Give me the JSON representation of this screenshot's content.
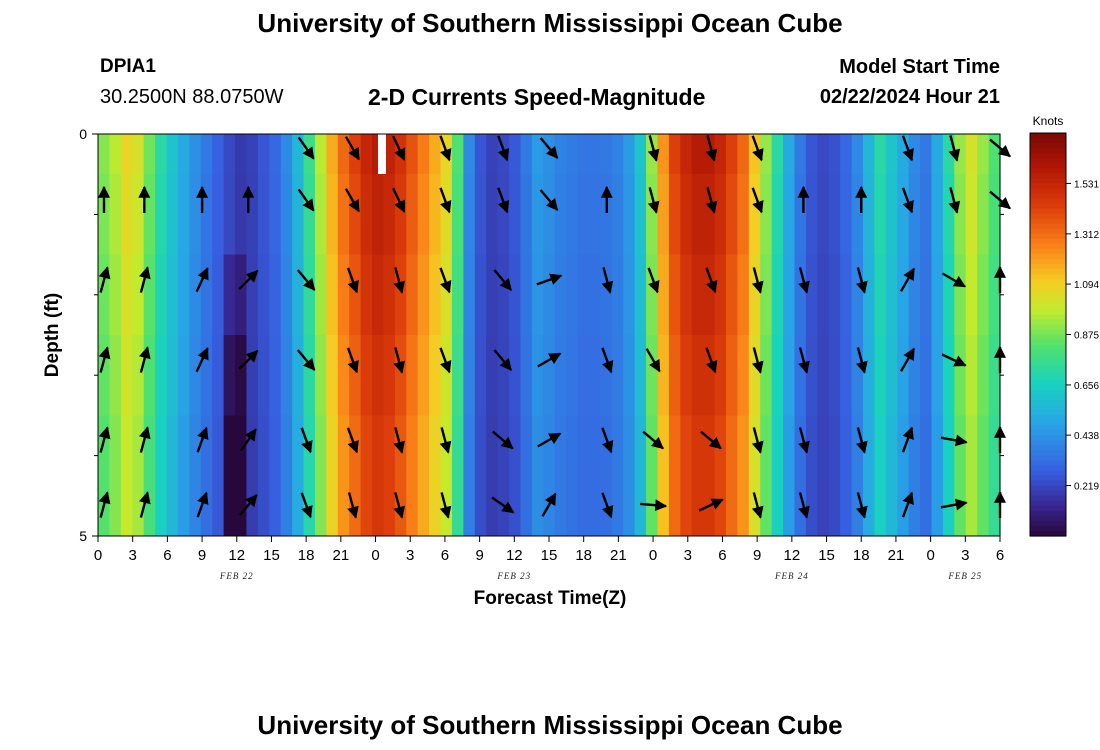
{
  "header": {
    "title": "University of Southern Mississippi Ocean Cube",
    "station_id": "DPIA1",
    "station_coords": "30.2500N  88.0750W",
    "subtitle": "2-D Currents Speed-Magnitude",
    "model_start_label": "Model Start Time",
    "model_start_value": "02/22/2024 Hour 21"
  },
  "footer": {
    "title": "University of Southern Mississippi Ocean Cube"
  },
  "chart_data": {
    "type": "heatmap",
    "title": "2-D Currents Speed-Magnitude",
    "xlabel": "Forecast Time(Z)",
    "ylabel": "Depth (ft)",
    "x_ticks": [
      "0",
      "3",
      "6",
      "9",
      "12",
      "15",
      "18",
      "21",
      "0",
      "3",
      "6",
      "9",
      "12",
      "15",
      "18",
      "21",
      "0",
      "3",
      "6",
      "9",
      "12",
      "15",
      "18",
      "21",
      "0",
      "3",
      "6"
    ],
    "y_ticks": [
      "0",
      "5"
    ],
    "date_labels": [
      {
        "label": "FEB 22",
        "tick_index": 4
      },
      {
        "label": "FEB 23",
        "tick_index": 12
      },
      {
        "label": "FEB 24",
        "tick_index": 20
      },
      {
        "label": "FEB 25",
        "tick_index": 25
      }
    ],
    "hours_start": 0,
    "hours_end": 78,
    "depth_levels": 5,
    "model_start_hour": 24,
    "colorbar": {
      "unit": "Knots",
      "min": 0,
      "max": 1.75,
      "ticks": [
        "1.531",
        "1.312",
        "1.094",
        "0.875",
        "0.656",
        "0.438",
        "0.219"
      ],
      "tick_values": [
        1.531,
        1.312,
        1.094,
        0.875,
        0.656,
        0.438,
        0.219
      ]
    },
    "speed_profile_hourly": [
      0.88,
      0.95,
      1.05,
      1.0,
      0.85,
      0.7,
      0.6,
      0.5,
      0.42,
      0.35,
      0.28,
      0.22,
      0.18,
      0.2,
      0.25,
      0.3,
      0.4,
      0.55,
      0.75,
      0.95,
      1.15,
      1.3,
      1.4,
      1.5,
      1.55,
      1.52,
      1.45,
      1.35,
      1.25,
      1.15,
      1.05,
      0.8,
      0.4,
      0.25,
      0.2,
      0.22,
      0.26,
      0.35,
      0.45,
      0.42,
      0.38,
      0.36,
      0.34,
      0.34,
      0.35,
      0.38,
      0.45,
      0.6,
      0.9,
      1.2,
      1.4,
      1.5,
      1.55,
      1.55,
      1.5,
      1.4,
      1.3,
      1.1,
      0.9,
      0.7,
      0.5,
      0.35,
      0.25,
      0.22,
      0.24,
      0.3,
      0.4,
      0.55,
      0.7,
      0.6,
      0.5,
      0.4,
      0.35,
      0.5,
      0.7,
      0.9,
      1.0,
      0.9,
      0.8
    ],
    "depth_factors": [
      1.02,
      1.0,
      0.98,
      0.96,
      0.94
    ],
    "arrow_hours": [
      0,
      4,
      9,
      13,
      18,
      22,
      26,
      30,
      35,
      39,
      44,
      48,
      53,
      57,
      61,
      66,
      70,
      74,
      78
    ],
    "arrow_directions_deg": [
      [
        0,
        0,
        0,
        0,
        145,
        150,
        155,
        160,
        160,
        140,
        0,
        165,
        165,
        160,
        0,
        0,
        160,
        165,
        130
      ],
      [
        15,
        15,
        25,
        45,
        140,
        160,
        165,
        160,
        140,
        70,
        165,
        160,
        160,
        165,
        165,
        165,
        30,
        120,
        0
      ],
      [
        15,
        15,
        25,
        45,
        140,
        160,
        165,
        160,
        140,
        60,
        160,
        150,
        160,
        165,
        165,
        165,
        30,
        115,
        0
      ],
      [
        15,
        15,
        20,
        35,
        160,
        160,
        165,
        165,
        130,
        60,
        160,
        130,
        130,
        165,
        165,
        165,
        20,
        100,
        0
      ],
      [
        15,
        15,
        20,
        40,
        160,
        165,
        165,
        165,
        125,
        30,
        160,
        95,
        65,
        165,
        165,
        165,
        20,
        80,
        0
      ]
    ]
  }
}
